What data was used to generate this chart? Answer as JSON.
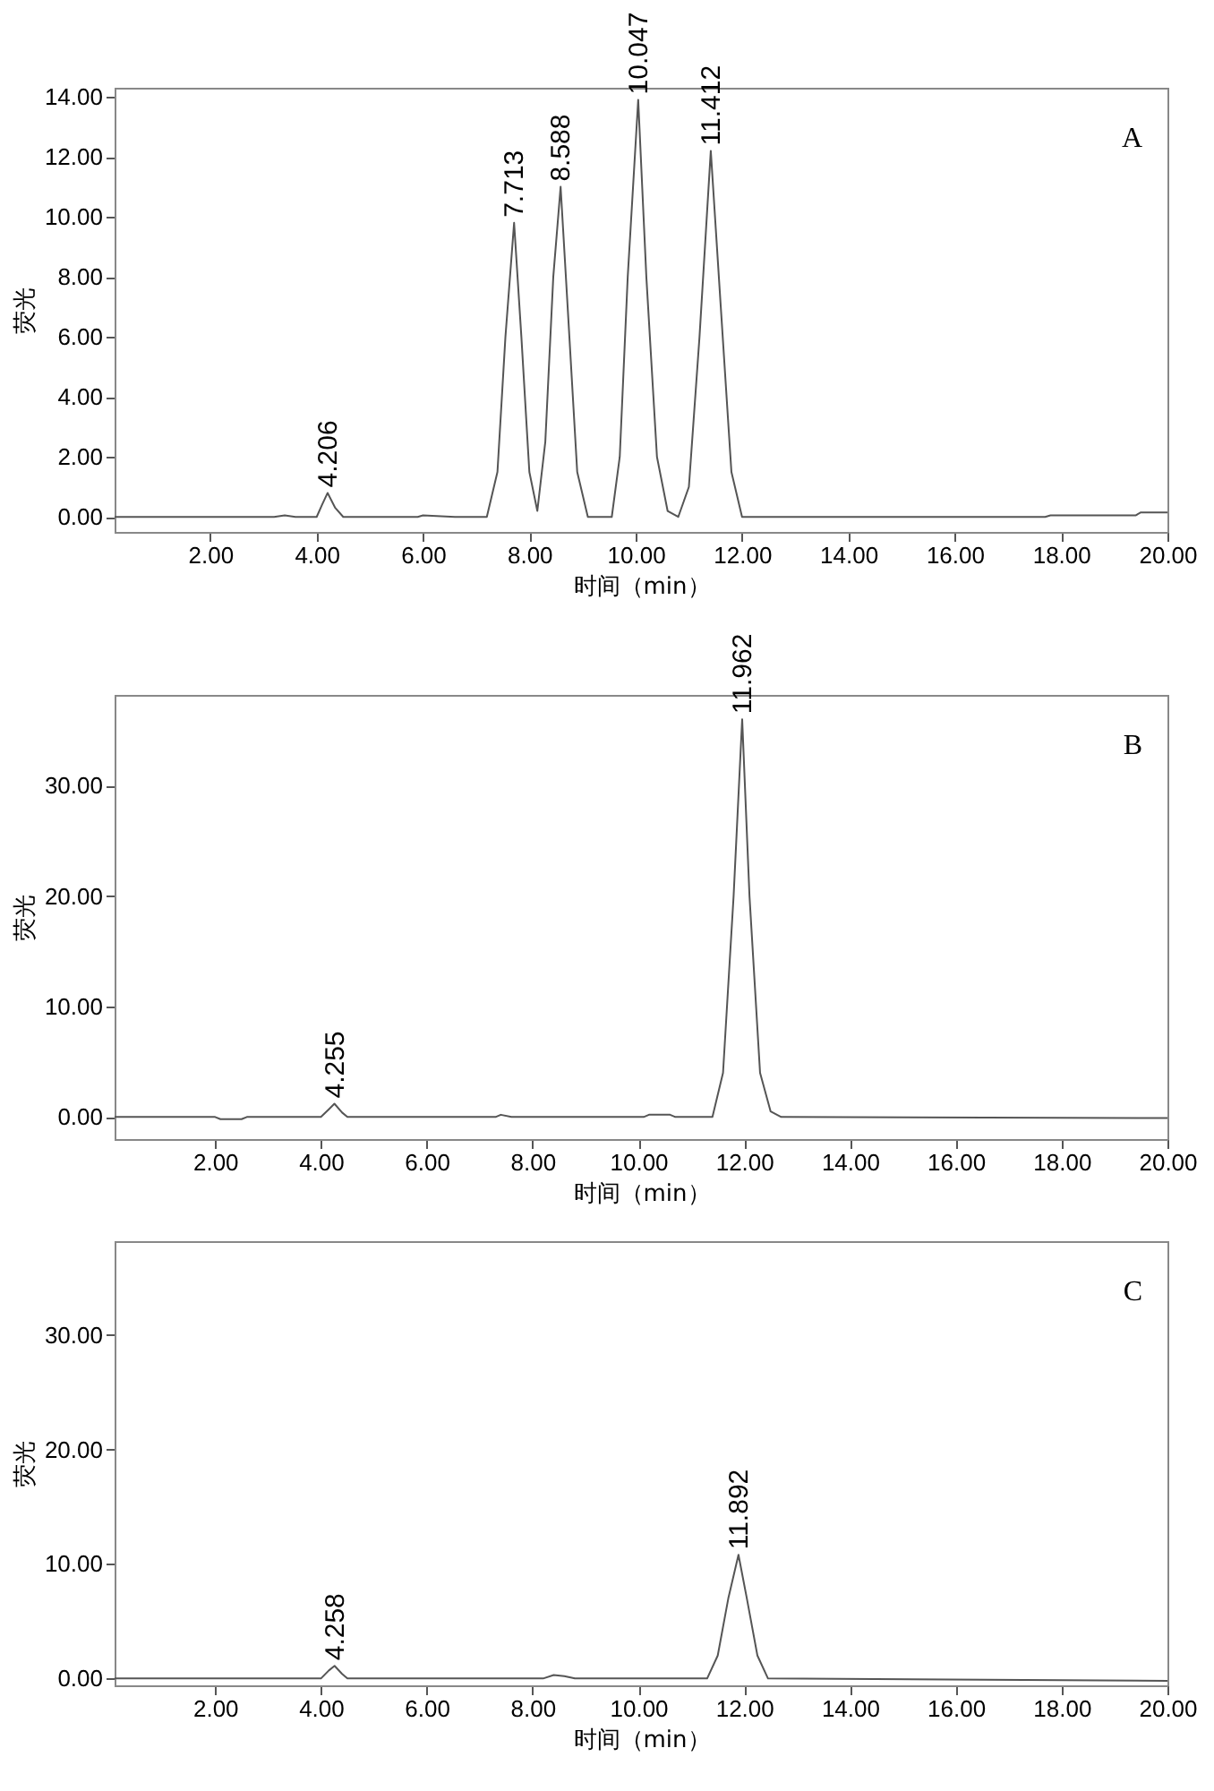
{
  "chart_data": [
    {
      "type": "line",
      "xlabel": "时间（min）",
      "ylabel": "荧光",
      "annotations": [
        "A",
        {
          "text": "4.206",
          "x": 4.206,
          "y": 0.8
        },
        {
          "text": "7.713",
          "x": 7.713,
          "y": 9.8
        },
        {
          "text": "8.588",
          "x": 8.588,
          "y": 11
        },
        {
          "text": "10.047",
          "x": 10.047,
          "y": 13.9
        },
        {
          "text": "11.412",
          "x": 11.412,
          "y": 12.2
        }
      ],
      "series": [
        {
          "color": "#555555",
          "x": [
            0.2,
            3.2,
            3.4,
            3.6,
            4.0,
            4.1,
            4.206,
            4.35,
            4.5,
            5.9,
            6.0,
            6.6,
            7.2,
            7.4,
            7.55,
            7.713,
            7.85,
            8.0,
            8.15,
            8.3,
            8.45,
            8.588,
            8.72,
            8.9,
            9.1,
            9.55,
            9.7,
            9.85,
            10.047,
            10.2,
            10.4,
            10.6,
            10.8,
            11.0,
            11.2,
            11.412,
            11.6,
            11.8,
            12.0,
            17.7,
            17.8,
            19.4,
            19.5,
            20
          ],
          "values": [
            0,
            0,
            0.05,
            0,
            0,
            0.4,
            0.8,
            0.3,
            0,
            0,
            0.05,
            0,
            0,
            1.5,
            6,
            9.8,
            6,
            1.5,
            0.2,
            2.5,
            8,
            11,
            7,
            1.5,
            0,
            0,
            2,
            8,
            13.9,
            8,
            2,
            0.2,
            0,
            1,
            6,
            12.2,
            7,
            1.5,
            0,
            0,
            0.05,
            0.05,
            0.15,
            0.15
          ]
        }
      ],
      "xlim": [
        0.2,
        20
      ],
      "ylim": [
        -0.5,
        14.3
      ],
      "xticks": [
        {
          "value": 2,
          "label": "2.00"
        },
        {
          "value": 4,
          "label": "4.00"
        },
        {
          "value": 6,
          "label": "6.00"
        },
        {
          "value": 8,
          "label": "8.00"
        },
        {
          "value": 10,
          "label": "10.00"
        },
        {
          "value": 12,
          "label": "12.00"
        },
        {
          "value": 14,
          "label": "14.00"
        },
        {
          "value": 16,
          "label": "16.00"
        },
        {
          "value": 18,
          "label": "18.00"
        },
        {
          "value": 20,
          "label": "20.00"
        }
      ],
      "yticks": [
        {
          "value": 0,
          "label": "0.00"
        },
        {
          "value": 2,
          "label": "2.00"
        },
        {
          "value": 4,
          "label": "4.00"
        },
        {
          "value": 6,
          "label": "6.00"
        },
        {
          "value": 8,
          "label": "8.00"
        },
        {
          "value": 10,
          "label": "10.00"
        },
        {
          "value": 12,
          "label": "12.00"
        },
        {
          "value": 14,
          "label": "14.00"
        }
      ],
      "grid": false,
      "marker": "none",
      "line_style": "solid"
    },
    {
      "type": "line",
      "xlabel": "时间（min）",
      "ylabel": "荧光",
      "annotations": [
        "B",
        {
          "text": "4.255",
          "x": 4.255,
          "y": 1.2
        },
        {
          "text": "11.962",
          "x": 11.962,
          "y": 36
        }
      ],
      "series": [
        {
          "color": "#555555",
          "x": [
            0.1,
            2.0,
            2.1,
            2.5,
            2.6,
            4.0,
            4.15,
            4.255,
            4.4,
            4.5,
            7.3,
            7.4,
            7.6,
            10.1,
            10.2,
            10.6,
            10.7,
            11.4,
            11.6,
            11.8,
            11.962,
            12.1,
            12.3,
            12.5,
            12.7,
            20
          ],
          "values": [
            0,
            0,
            -0.2,
            -0.2,
            0,
            0,
            0.7,
            1.2,
            0.4,
            0,
            0,
            0.2,
            0,
            0,
            0.2,
            0.2,
            0,
            0,
            4,
            20,
            36,
            20,
            4,
            0.5,
            0,
            -0.1
          ]
        }
      ],
      "xlim": [
        0.1,
        20
      ],
      "ylim": [
        -2,
        38.2
      ],
      "xticks": [
        {
          "value": 2,
          "label": "2.00"
        },
        {
          "value": 4,
          "label": "4.00"
        },
        {
          "value": 6,
          "label": "6.00"
        },
        {
          "value": 8,
          "label": "8.00"
        },
        {
          "value": 10,
          "label": "10.00"
        },
        {
          "value": 12,
          "label": "12.00"
        },
        {
          "value": 14,
          "label": "14.00"
        },
        {
          "value": 16,
          "label": "16.00"
        },
        {
          "value": 18,
          "label": "18.00"
        },
        {
          "value": 20,
          "label": "20.00"
        }
      ],
      "yticks": [
        {
          "value": 0,
          "label": "0.00"
        },
        {
          "value": 10,
          "label": "10.00"
        },
        {
          "value": 20,
          "label": "20.00"
        },
        {
          "value": 30,
          "label": "30.00"
        }
      ],
      "grid": false,
      "marker": "none",
      "line_style": "solid"
    },
    {
      "type": "line",
      "xlabel": "时间（min）",
      "ylabel": "荧光",
      "annotations": [
        "C",
        {
          "text": "4.258",
          "x": 4.258,
          "y": 1.1
        },
        {
          "text": "11.892",
          "x": 11.892,
          "y": 10.8
        }
      ],
      "series": [
        {
          "color": "#555555",
          "x": [
            0.1,
            1.3,
            4.0,
            4.15,
            4.258,
            4.4,
            4.5,
            8.2,
            8.4,
            8.6,
            8.8,
            11.3,
            11.5,
            11.7,
            11.892,
            12.05,
            12.25,
            12.45,
            20
          ],
          "values": [
            0,
            0,
            0,
            0.7,
            1.1,
            0.4,
            0,
            0,
            0.3,
            0.2,
            0,
            0,
            2,
            7,
            10.8,
            7,
            2,
            0,
            -0.2
          ]
        }
      ],
      "xlim": [
        0.1,
        20
      ],
      "ylim": [
        -0.6,
        38.2
      ],
      "xticks": [
        {
          "value": 2,
          "label": "2.00"
        },
        {
          "value": 4,
          "label": "4.00"
        },
        {
          "value": 6,
          "label": "6.00"
        },
        {
          "value": 8,
          "label": "8.00"
        },
        {
          "value": 10,
          "label": "10.00"
        },
        {
          "value": 12,
          "label": "12.00"
        },
        {
          "value": 14,
          "label": "14.00"
        },
        {
          "value": 16,
          "label": "16.00"
        },
        {
          "value": 18,
          "label": "18.00"
        },
        {
          "value": 20,
          "label": "20.00"
        }
      ],
      "yticks": [
        {
          "value": 0,
          "label": "0.00"
        },
        {
          "value": 10,
          "label": "10.00"
        },
        {
          "value": 20,
          "label": "20.00"
        },
        {
          "value": 30,
          "label": "30.00"
        }
      ],
      "grid": false,
      "marker": "none",
      "line_style": "solid"
    }
  ]
}
